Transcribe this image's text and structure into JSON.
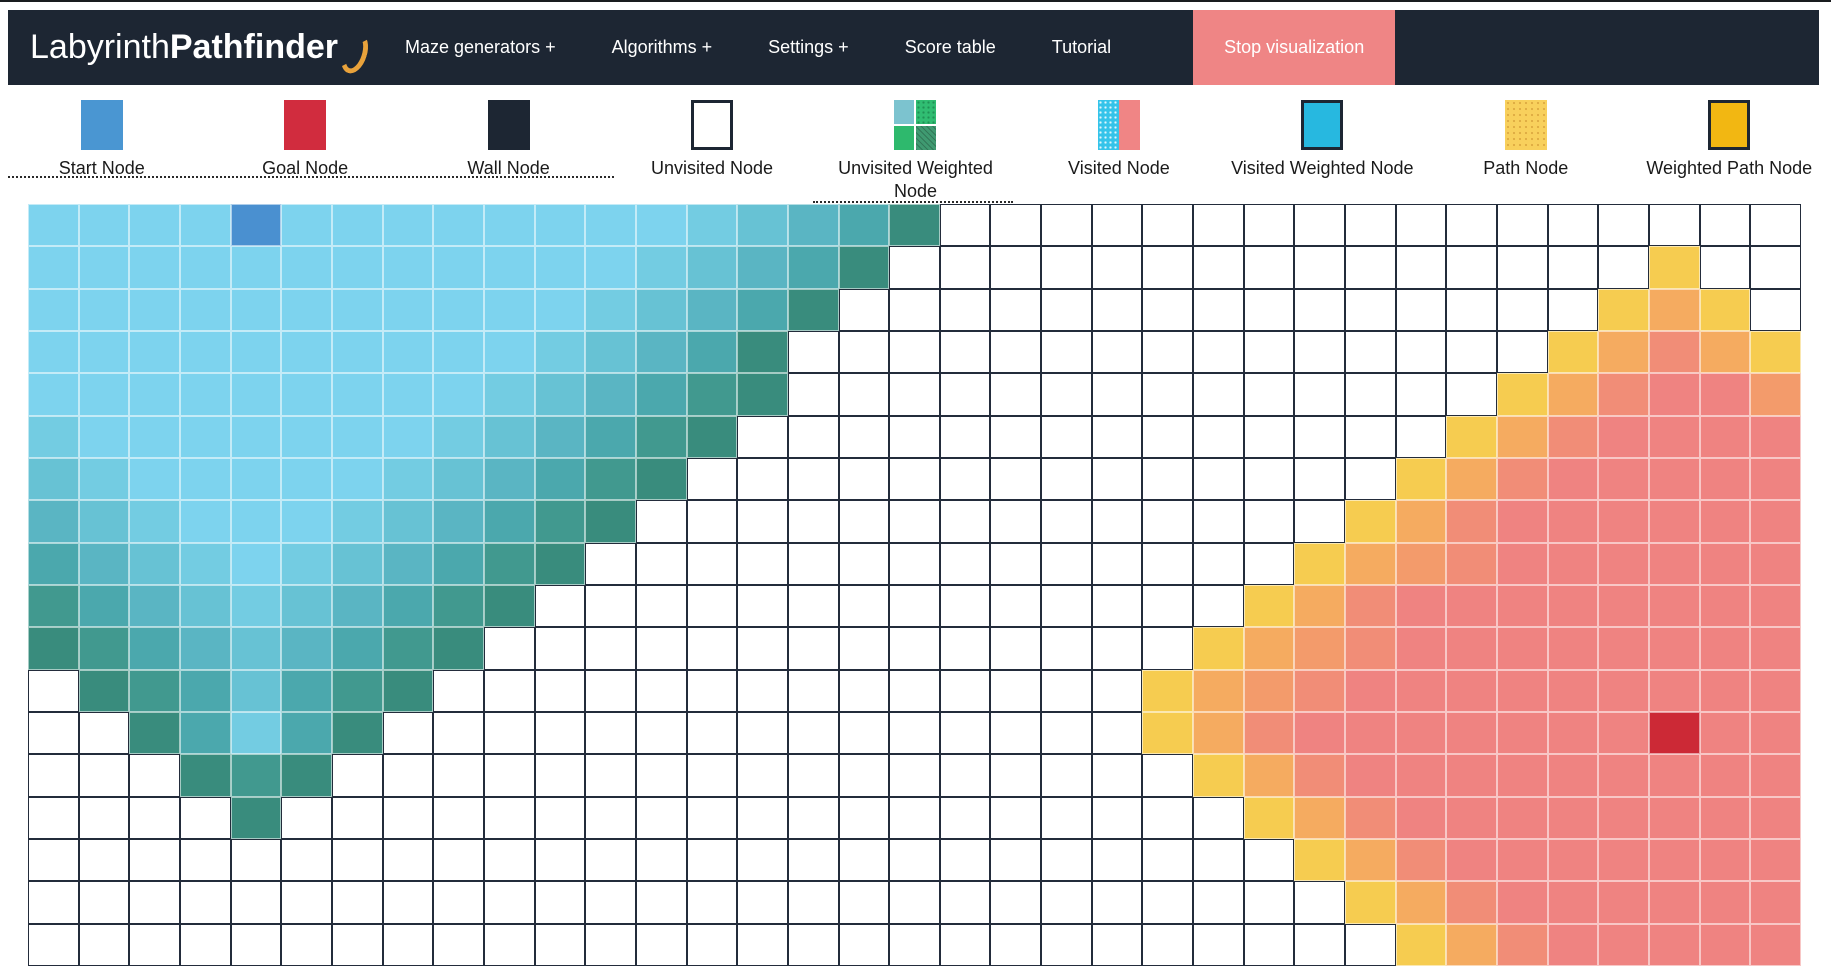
{
  "navbar": {
    "title_regular": "Labyrinth ",
    "title_bold": "Pathfinder",
    "items": [
      {
        "label": "Maze generators +"
      },
      {
        "label": "Algorithms +"
      },
      {
        "label": "Settings +"
      },
      {
        "label": "Score table"
      },
      {
        "label": "Tutorial"
      }
    ],
    "stop_button": {
      "label": "Stop visualization"
    }
  },
  "legend": {
    "items": [
      {
        "label": "Start Node"
      },
      {
        "label": "Goal Node"
      },
      {
        "label": "Wall Node"
      },
      {
        "label": "Unvisited Node"
      },
      {
        "label": "Unvisited Weighted Node"
      },
      {
        "label": "Visited Node"
      },
      {
        "label": "Visited Weighted Node"
      },
      {
        "label": "Path Node"
      },
      {
        "label": "Weighted Path Node"
      }
    ]
  },
  "colors": {
    "navbar_bg": "#1d2633",
    "accent_salmon": "#ef8585",
    "start_blue": "#4a96d2",
    "goal_red": "#cc2936",
    "path_yellow": "#f8d05c",
    "weighted_path_gold": "#f2b712",
    "visited_cyan": "#35c4ea"
  },
  "grid": {
    "cols": 35,
    "rows": 18,
    "palette": {
      ".": "#ffffff",
      "S": "#4a90d0",
      "G": "#cc2936",
      "1": "#7dd3ee",
      "2": "#73cce2",
      "3": "#67c2d4",
      "4": "#5ab5c3",
      "5": "#4ba8ad",
      "6": "#41998f",
      "7": "#398c7d",
      "Y": "#f6cc50",
      "O": "#f5ab60",
      "o": "#f39b6b",
      "p": "#f18d77",
      "r": "#ef8381"
    },
    "rows_data": [
      "1111S1111111123457.................",
      "11111111111123457...............Y..",
      "1111111111123457...............YOY.",
      "111111111123457...............YOpOY",
      "111111111234567..............YOprro",
      "21111111234567..............YOprrrr",
      "3211111234567..............YOprrrrr",
      "432111234567..............YOprrrrrr",
      "54321234567..............YOoprrrrrr",
      "6543234567..............YOprrrrrrrr",
      "765434567..............YOoprrrrrrrr",
      ".7653567..............YOoprrrrrrrrr",
      "..75257...............YOprrrrrrrGrr",
      "...767.................YOprrrrrrrrr",
      "....7...................YOprrrrrrrr",
      ".........................YOprrrrrrr",
      "..........................YOprrrrrr",
      "...........................YOprrrrr"
    ]
  }
}
